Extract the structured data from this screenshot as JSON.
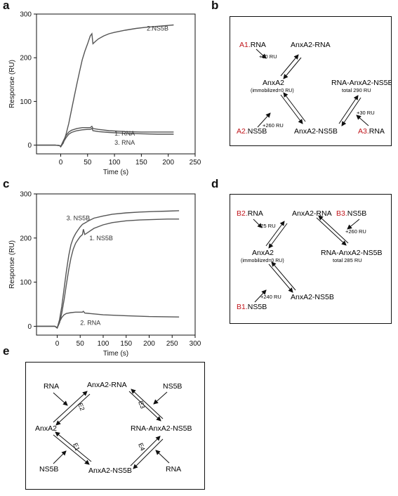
{
  "panel_labels": {
    "a": "a",
    "b": "b",
    "c": "c",
    "d": "d",
    "e": "e"
  },
  "colors": {
    "highlight": "#c0141a",
    "ink": "#111111",
    "curve": "#555555"
  },
  "chart_data": [
    {
      "type": "line",
      "panel": "a",
      "xlabel": "Time (s)",
      "ylabel": "Response (RU)",
      "xlim": [
        -45,
        250
      ],
      "ylim": [
        -20,
        300
      ],
      "xticks": [
        0,
        50,
        100,
        150,
        200,
        250
      ],
      "yticks": [
        0,
        100,
        200,
        300
      ],
      "series": [
        {
          "name": "2.NS5B",
          "label": "2.NS5B",
          "x": [
            -45,
            -30,
            -10,
            -2,
            0,
            5,
            10,
            15,
            20,
            25,
            30,
            35,
            40,
            45,
            50,
            55,
            58,
            60,
            65,
            70,
            80,
            90,
            100,
            120,
            140,
            160,
            180,
            200,
            210
          ],
          "y": [
            0,
            0,
            0,
            -1,
            -4,
            5,
            25,
            50,
            80,
            110,
            140,
            168,
            195,
            215,
            232,
            250,
            255,
            232,
            238,
            243,
            250,
            255,
            258,
            263,
            267,
            270,
            272,
            274,
            275
          ]
        },
        {
          "name": "1. RNA",
          "label": "1. RNA",
          "x": [
            -45,
            -30,
            -10,
            -2,
            0,
            5,
            10,
            15,
            20,
            30,
            40,
            50,
            55,
            58,
            60,
            70,
            90,
            120,
            150,
            180,
            210
          ],
          "y": [
            0,
            0,
            0,
            -1,
            -3,
            10,
            22,
            30,
            34,
            38,
            40,
            40,
            40,
            43,
            38,
            36,
            33,
            31,
            30,
            30,
            30
          ]
        },
        {
          "name": "3. RNA",
          "label": "3. RNA",
          "x": [
            -45,
            -30,
            -10,
            -2,
            0,
            5,
            10,
            15,
            20,
            30,
            40,
            50,
            55,
            58,
            60,
            70,
            90,
            120,
            150,
            180,
            210
          ],
          "y": [
            0,
            0,
            0,
            -1,
            -3,
            7,
            17,
            25,
            29,
            33,
            35,
            36,
            36,
            38,
            33,
            31,
            29,
            27,
            26,
            25,
            25
          ]
        }
      ]
    },
    {
      "type": "line",
      "panel": "c",
      "xlabel": "Time (s)",
      "ylabel": "Response (RU)",
      "xlim": [
        -45,
        300
      ],
      "ylim": [
        -20,
        300
      ],
      "xticks": [
        0,
        50,
        100,
        150,
        200,
        250,
        300
      ],
      "yticks": [
        0,
        100,
        200,
        300
      ],
      "series": [
        {
          "name": "3. NS5B",
          "label": "3. NS5B",
          "x": [
            -45,
            -20,
            -5,
            0,
            5,
            10,
            15,
            20,
            25,
            30,
            35,
            40,
            45,
            50,
            55,
            60,
            70,
            80,
            100,
            120,
            150,
            180,
            210,
            240,
            265
          ],
          "y": [
            0,
            0,
            0,
            -4,
            15,
            45,
            85,
            125,
            160,
            185,
            200,
            210,
            218,
            225,
            231,
            234,
            240,
            245,
            250,
            254,
            257,
            259,
            260,
            261,
            262
          ]
        },
        {
          "name": "1. NS5B",
          "label": "1. NS5B",
          "x": [
            -45,
            -20,
            -5,
            0,
            5,
            10,
            15,
            20,
            25,
            30,
            35,
            40,
            45,
            50,
            55,
            57,
            60,
            70,
            80,
            100,
            120,
            150,
            180,
            210,
            240,
            265
          ],
          "y": [
            0,
            0,
            0,
            -4,
            8,
            30,
            60,
            95,
            128,
            155,
            175,
            188,
            196,
            203,
            208,
            220,
            208,
            215,
            222,
            230,
            235,
            239,
            241,
            242,
            243,
            243
          ]
        },
        {
          "name": "2. RNA",
          "label": "2. RNA",
          "x": [
            -45,
            -20,
            -5,
            0,
            5,
            10,
            15,
            20,
            30,
            40,
            50,
            55,
            57,
            60,
            80,
            100,
            150,
            200,
            265
          ],
          "y": [
            0,
            0,
            0,
            -3,
            10,
            20,
            26,
            29,
            31,
            32,
            32,
            32,
            34,
            30,
            28,
            26,
            24,
            22,
            21
          ]
        }
      ]
    }
  ],
  "panel_b": {
    "a1_prefix": "A1.",
    "a1_rest": "RNA",
    "a2_prefix": "A2.",
    "a2_rest": "NS5B",
    "a3_prefix": "A3.",
    "a3_rest": "RNA",
    "anxa2": "AnxA2",
    "immobilized": "(immobilized=0 RU)",
    "anxa2_rna": "AnxA2-RNA",
    "anxa2_ns5b": "AnxA2-NS5B",
    "complex": "RNA-AnxA2-NS5B",
    "total": "total 290 RU",
    "d1": "+30 RU",
    "d2": "+260 RU",
    "d3": "+30 RU"
  },
  "panel_d": {
    "b2_prefix": "B2.",
    "b2_rest": "RNA",
    "b1_prefix": "B1.",
    "b1_rest": "NS5B",
    "b3_prefix": "B3.",
    "b3_rest": "NS5B",
    "anxa2": "AnxA2",
    "immobilized": "(immobilized=0 RU)",
    "anxa2_rna": "AnxA2-RNA",
    "anxa2_ns5b": "AnxA2-NS5B",
    "complex": "RNA-AnxA2-NS5B",
    "total": "total 285 RU",
    "d1": "+25 RU",
    "d2": "+260 RU",
    "d3": "+240 RU"
  },
  "panel_e": {
    "rna_top": "RNA",
    "anxa2_rna": "AnxA2-RNA",
    "ns5b_top": "NS5B",
    "anxa2": "AnxA2",
    "complex": "RNA-AnxA2-NS5B",
    "ns5b_bottom": "NS5B",
    "anxa2_ns5b": "AnxA2-NS5B",
    "rna_bottom": "RNA",
    "e1": "E1",
    "e2": "E2",
    "e3": "E3",
    "e4": "E4"
  }
}
